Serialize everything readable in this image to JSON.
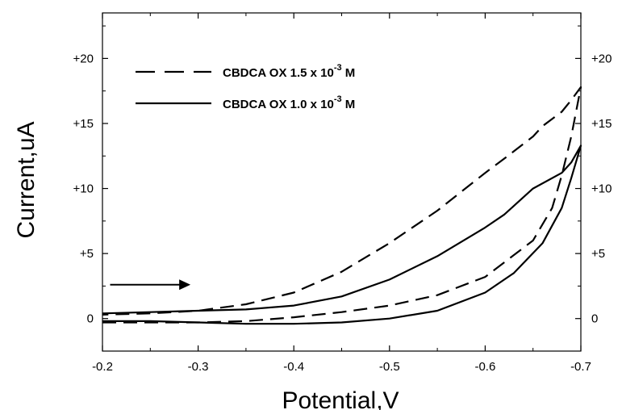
{
  "chart_data": {
    "type": "line",
    "title": "",
    "xlabel": "Potential,V",
    "ylabel": "Current,uA",
    "xlim": [
      -0.2,
      -0.7
    ],
    "ylim": [
      -2.5,
      23.5
    ],
    "x_ticks": [
      -0.2,
      -0.3,
      -0.4,
      -0.5,
      -0.6,
      -0.7
    ],
    "x_tick_labels": [
      "-0.2",
      "-0.3",
      "-0.4",
      "-0.5",
      "-0.6",
      "-0.7"
    ],
    "y_ticks": [
      0,
      5,
      10,
      15,
      20
    ],
    "y_tick_labels": [
      "0",
      "+5",
      "+10",
      "+15",
      "+20"
    ],
    "grid": false,
    "legend_position": "top-left",
    "annotations": [
      {
        "type": "arrow",
        "direction": "right",
        "from": [
          -0.208,
          2.6
        ],
        "to": [
          -0.292,
          2.6
        ]
      }
    ],
    "series": [
      {
        "name": "CBDCA OX 1.5 x 10-3 M",
        "legend_text": "CBDCA OX 1.5 x 10",
        "legend_exp": "-3",
        "legend_suffix": " M",
        "style": "dashed",
        "points": [
          [
            -0.2,
            -0.3
          ],
          [
            -0.25,
            -0.3
          ],
          [
            -0.3,
            -0.3
          ],
          [
            -0.35,
            -0.2
          ],
          [
            -0.4,
            0.1
          ],
          [
            -0.45,
            0.5
          ],
          [
            -0.5,
            1.0
          ],
          [
            -0.55,
            1.8
          ],
          [
            -0.6,
            3.2
          ],
          [
            -0.65,
            6.0
          ],
          [
            -0.67,
            8.5
          ],
          [
            -0.68,
            11.0
          ],
          [
            -0.69,
            14.0
          ],
          [
            -0.7,
            17.8
          ],
          [
            -0.69,
            16.8
          ],
          [
            -0.68,
            15.9
          ],
          [
            -0.66,
            14.8
          ],
          [
            -0.65,
            14.0
          ],
          [
            -0.62,
            12.3
          ],
          [
            -0.6,
            11.2
          ],
          [
            -0.55,
            8.3
          ],
          [
            -0.5,
            5.8
          ],
          [
            -0.45,
            3.6
          ],
          [
            -0.4,
            2.0
          ],
          [
            -0.35,
            1.1
          ],
          [
            -0.3,
            0.6
          ],
          [
            -0.25,
            0.4
          ],
          [
            -0.2,
            0.3
          ]
        ]
      },
      {
        "name": "CBDCA OX 1.0 x 10-3 M",
        "legend_text": "CBDCA OX 1.0 x 10",
        "legend_exp": "-3",
        "legend_suffix": " M",
        "style": "solid",
        "points": [
          [
            -0.2,
            -0.2
          ],
          [
            -0.25,
            -0.2
          ],
          [
            -0.3,
            -0.3
          ],
          [
            -0.35,
            -0.4
          ],
          [
            -0.4,
            -0.4
          ],
          [
            -0.45,
            -0.3
          ],
          [
            -0.5,
            0.0
          ],
          [
            -0.55,
            0.6
          ],
          [
            -0.6,
            2.0
          ],
          [
            -0.63,
            3.5
          ],
          [
            -0.66,
            5.8
          ],
          [
            -0.68,
            8.5
          ],
          [
            -0.69,
            10.8
          ],
          [
            -0.7,
            13.3
          ],
          [
            -0.69,
            12.0
          ],
          [
            -0.68,
            11.2
          ],
          [
            -0.65,
            10.0
          ],
          [
            -0.62,
            8.0
          ],
          [
            -0.6,
            7.0
          ],
          [
            -0.55,
            4.8
          ],
          [
            -0.5,
            3.0
          ],
          [
            -0.45,
            1.7
          ],
          [
            -0.4,
            1.0
          ],
          [
            -0.35,
            0.7
          ],
          [
            -0.3,
            0.6
          ],
          [
            -0.25,
            0.5
          ],
          [
            -0.2,
            0.4
          ]
        ]
      }
    ]
  }
}
